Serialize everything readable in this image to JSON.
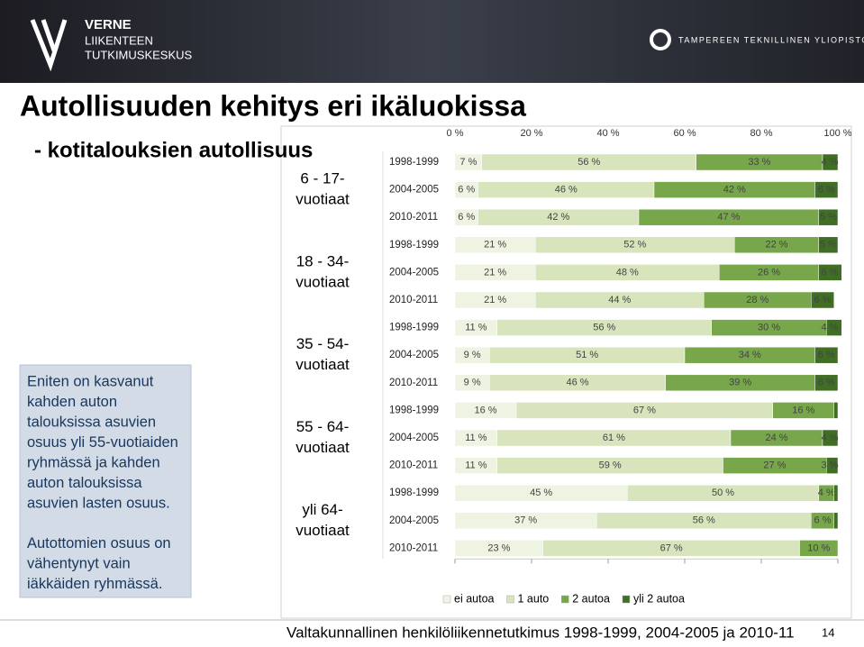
{
  "header": {
    "logo_left": [
      "VERNE",
      "LIIKENTEEN",
      "TUTKIMUSKESKUS"
    ],
    "logo_right": "TAMPEREEN TEKNILLINEN YLIOPISTO"
  },
  "slide": {
    "title": "Autollisuuden kehitys eri ikäluokissa",
    "subtitle": "- kotitalouksien autollisuus",
    "note": [
      "Eniten on kasvanut",
      "kahden auton",
      "talouksissa asuvien",
      "osuus yli 55-vuotiaiden",
      "ryhmässä ja kahden",
      "auton talouksissa",
      "asuvien lasten osuus.",
      "Autottomien osuus on",
      "vähentynyt vain",
      "iäkkäiden ryhmässä."
    ],
    "footer": "Valtakunnallinen henkilöliikennetutkimus 1998-1999, 2004-2005 ja 2010-11",
    "page_number": "14"
  },
  "chart_data": {
    "type": "bar",
    "orientation": "horizontal",
    "stacked": true,
    "categories": [
      "1998-1999",
      "2004-2005",
      "2010-2011",
      "1998-1999",
      "2004-2005",
      "2010-2011",
      "1998-1999",
      "2004-2005",
      "2010-2011",
      "1998-1999",
      "2004-2005",
      "2010-2011",
      "1998-1999",
      "2004-2005",
      "2010-2011"
    ],
    "groups": [
      {
        "label": [
          "6 - 17-",
          "vuotiaat"
        ],
        "size": 3
      },
      {
        "label": [
          "18 - 34-",
          "vuotiaat"
        ],
        "size": 3
      },
      {
        "label": [
          "35 - 54-",
          "vuotiaat"
        ],
        "size": 3
      },
      {
        "label": [
          "55 - 64-",
          "vuotiaat"
        ],
        "size": 3
      },
      {
        "label": [
          "yli 64-",
          "vuotiaat"
        ],
        "size": 3
      }
    ],
    "series": [
      {
        "name": "ei autoa",
        "color": "#eef3e2",
        "values": [
          7,
          6,
          6,
          21,
          21,
          21,
          11,
          9,
          9,
          16,
          11,
          11,
          45,
          37,
          23
        ],
        "value_labels": [
          "7 %",
          "6 %",
          "6 %",
          "21 %",
          "21 %",
          "21 %",
          "11 %",
          "9 %",
          "9 %",
          "16 %",
          "11 %",
          "11 %",
          "45 %",
          "37 %",
          "23 %"
        ]
      },
      {
        "name": "1 auto",
        "color": "#d7e4bc",
        "values": [
          56,
          46,
          42,
          52,
          48,
          44,
          56,
          51,
          46,
          67,
          61,
          59,
          50,
          56,
          67
        ],
        "value_labels": [
          "56 %",
          "46 %",
          "42 %",
          "52 %",
          "48 %",
          "44 %",
          "56 %",
          "51 %",
          "46 %",
          "67 %",
          "61 %",
          "59 %",
          "50 %",
          "56 %",
          "67 %"
        ]
      },
      {
        "name": "2 autoa",
        "color": "#77a64b",
        "values": [
          33,
          42,
          47,
          22,
          26,
          28,
          30,
          34,
          39,
          16,
          24,
          27,
          4,
          6,
          10
        ],
        "value_labels": [
          "33 %",
          "42 %",
          "47 %",
          "22 %",
          "26 %",
          "28 %",
          "30 %",
          "34 %",
          "39 %",
          "16 %",
          "24 %",
          "27 %",
          "4 %",
          "6 %",
          "10 %"
        ]
      },
      {
        "name": "yli 2 autoa",
        "color": "#3f6e24",
        "values": [
          4,
          6,
          5,
          5,
          6,
          6,
          4,
          6,
          6,
          1,
          4,
          3,
          1,
          1,
          0
        ],
        "value_labels": [
          "4 %",
          "6 %",
          "5 %",
          "5 %",
          "6 %",
          "6 %",
          "4 %",
          "6 %",
          "6 %",
          null,
          "4 %",
          "3 %",
          null,
          null,
          null
        ]
      }
    ],
    "xlim": [
      0,
      100
    ],
    "xticks": [
      {
        "value": 0,
        "label": "0 %"
      },
      {
        "value": 20,
        "label": "20 %"
      },
      {
        "value": 40,
        "label": "40 %"
      },
      {
        "value": 60,
        "label": "60 %"
      },
      {
        "value": 80,
        "label": "80 %"
      },
      {
        "value": 100,
        "label": "100 %"
      }
    ],
    "legend": "bottom"
  }
}
